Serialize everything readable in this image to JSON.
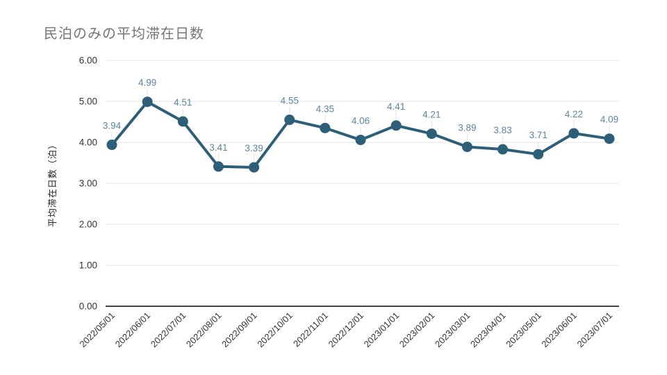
{
  "title": "民泊のみの平均滞在日数",
  "chart_data": {
    "type": "line",
    "title": "民泊のみの平均滞在日数",
    "xlabel": "",
    "ylabel": "平均滞在日数（泊）",
    "x": [
      "2022/05/01",
      "2022/06/01",
      "2022/07/01",
      "2022/08/01",
      "2022/09/01",
      "2022/10/01",
      "2022/11/01",
      "2022/12/01",
      "2023/01/01",
      "2023/02/01",
      "2023/03/01",
      "2023/04/01",
      "2023/05/01",
      "2023/06/01",
      "2023/07/01"
    ],
    "values": [
      3.94,
      4.99,
      4.51,
      3.41,
      3.39,
      4.55,
      4.35,
      4.06,
      4.41,
      4.21,
      3.89,
      3.83,
      3.71,
      4.22,
      4.09
    ],
    "data_labels": [
      "3.94",
      "4.99",
      "4.51",
      "3.41",
      "3.39",
      "4.55",
      "4.35",
      "4.06",
      "4.41",
      "4.21",
      "3.89",
      "3.83",
      "3.71",
      "4.22",
      "4.09"
    ],
    "ylim": [
      0,
      6
    ],
    "ytick_values": [
      0,
      1,
      2,
      3,
      4,
      5,
      6
    ],
    "ytick_labels": [
      "0.00",
      "1.00",
      "2.00",
      "3.00",
      "4.00",
      "5.00",
      "6.00"
    ],
    "grid": true,
    "legend": "none",
    "colors": {
      "series": "#2d5f78",
      "data_label": "#5b84a0",
      "gridline": "#e3e3e3",
      "axis_line": "#424242",
      "tick_text": "#333333",
      "axis_title_text": "#212121",
      "title_text": "#757575",
      "label_stem": "#e0e0e0",
      "background": "#ffffff"
    }
  }
}
